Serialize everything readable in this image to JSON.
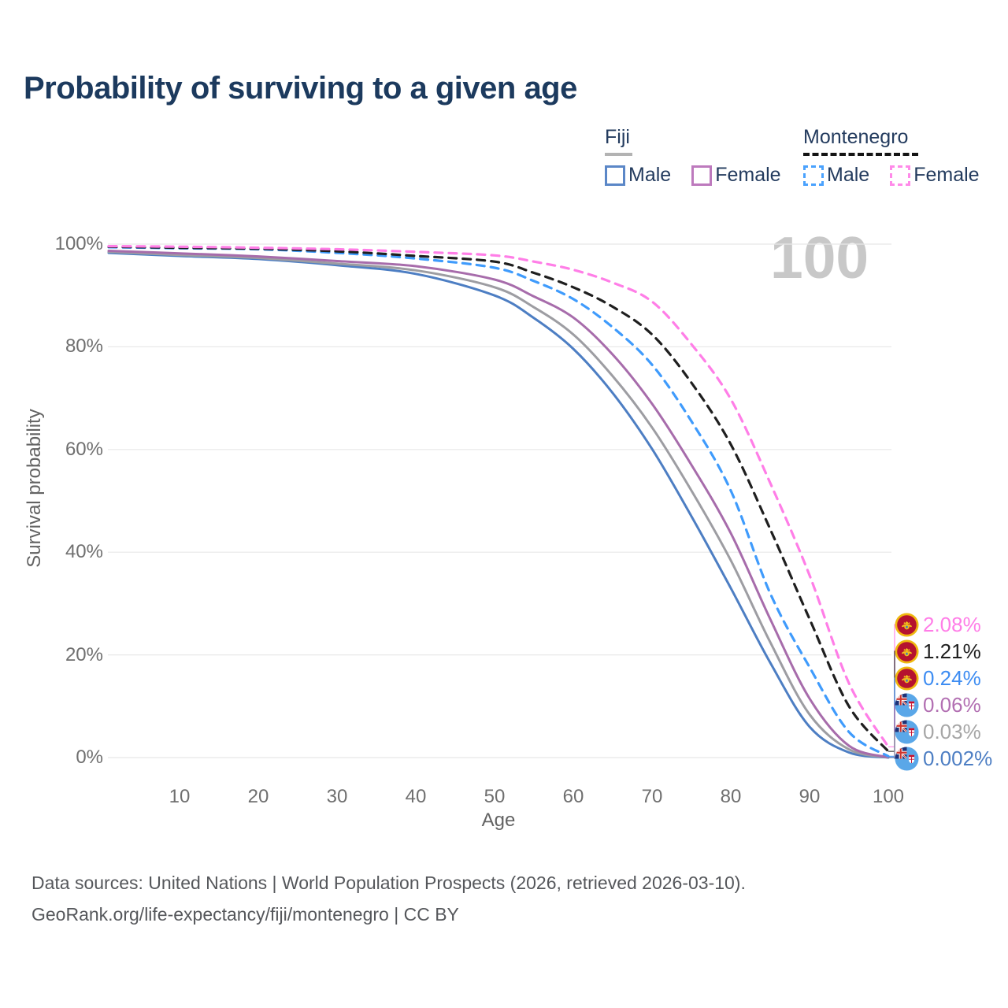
{
  "title": "Probability of surviving to a given age",
  "watermark": "100",
  "legend": {
    "groups": [
      {
        "label": "Fiji",
        "style": "solid",
        "underline_color": "#b3b3b3",
        "items": [
          {
            "label": "Male",
            "color": "#5b87c7"
          },
          {
            "label": "Female",
            "color": "#bd7abd"
          }
        ]
      },
      {
        "label": "Montenegro",
        "style": "dashed",
        "underline_color": "#141414",
        "items": [
          {
            "label": "Male",
            "color": "#4aa2fe"
          },
          {
            "label": "Female",
            "color": "#ff8ae9"
          }
        ]
      }
    ]
  },
  "chart_data": {
    "type": "line",
    "title": "Probability of surviving to a given age",
    "xlabel": "Age",
    "ylabel": "Survival probability",
    "xlim": [
      0,
      100
    ],
    "ylim": [
      0,
      100
    ],
    "grid": "horizontal",
    "x_ticks": [
      10,
      20,
      30,
      40,
      50,
      60,
      70,
      80,
      90,
      100
    ],
    "y_ticks": [
      0,
      20,
      40,
      60,
      80,
      100
    ],
    "y_tick_labels": [
      "0%",
      "20%",
      "40%",
      "60%",
      "80%",
      "100%"
    ],
    "x": [
      1,
      10,
      20,
      30,
      40,
      50,
      55,
      60,
      65,
      70,
      75,
      80,
      85,
      90,
      95,
      100
    ],
    "series": [
      {
        "id": "fiji-male",
        "name": "Fiji Male",
        "country": "fiji",
        "sex": "male",
        "line": "solid",
        "color": "#4d7ec3",
        "label_color": "#4d7ec3",
        "end_label": "0.002%",
        "values": [
          98.3,
          97.7,
          97.1,
          95.9,
          94.2,
          90.0,
          85.6,
          79.6,
          71.0,
          60.1,
          47.0,
          33.0,
          18.5,
          6.0,
          1.0,
          0.002
        ]
      },
      {
        "id": "fiji-both",
        "name": "Fiji Both sexes",
        "country": "fiji",
        "sex": "both",
        "line": "solid",
        "color": "#9d9da2",
        "label_color": "#a6a6a6",
        "end_label": "0.03%",
        "values": [
          98.5,
          97.9,
          97.3,
          96.2,
          94.9,
          91.6,
          87.7,
          82.4,
          74.3,
          64.3,
          52.0,
          38.4,
          22.5,
          8.4,
          1.6,
          0.03
        ]
      },
      {
        "id": "fiji-female",
        "name": "Fiji Female",
        "country": "fiji",
        "sex": "female",
        "line": "solid",
        "color": "#a76cab",
        "label_color": "#b26fb2",
        "end_label": "0.06%",
        "values": [
          98.7,
          98.2,
          97.6,
          96.7,
          95.7,
          93.1,
          89.8,
          85.7,
          78.5,
          68.9,
          57.0,
          43.7,
          27.0,
          11.5,
          2.3,
          0.06
        ]
      },
      {
        "id": "montenegro-male",
        "name": "Montenegro Male",
        "country": "montenegro",
        "sex": "male",
        "line": "dashed",
        "color": "#3f9bfc",
        "label_color": "#3e8df2",
        "end_label": "0.24%",
        "values": [
          99.4,
          99.2,
          99.0,
          98.3,
          97.2,
          95.4,
          92.8,
          89.3,
          83.8,
          76.5,
          65.5,
          52.0,
          32.0,
          17.6,
          5.0,
          0.24
        ]
      },
      {
        "id": "montenegro-both",
        "name": "Montenegro Both sexes",
        "country": "montenegro",
        "sex": "both",
        "line": "dashed",
        "color": "#1f1f1f",
        "label_color": "#1f1f1f",
        "end_label": "1.21%",
        "values": [
          99.5,
          99.3,
          99.1,
          98.6,
          97.7,
          96.6,
          94.4,
          91.6,
          87.8,
          82.4,
          73.0,
          61.0,
          44.5,
          27.0,
          10.0,
          1.21
        ]
      },
      {
        "id": "montenegro-female",
        "name": "Montenegro Female",
        "country": "montenegro",
        "sex": "female",
        "line": "dashed",
        "color": "#ff7ee7",
        "label_color": "#ff7ee7",
        "end_label": "2.08%",
        "values": [
          99.6,
          99.5,
          99.3,
          99.0,
          98.5,
          97.8,
          96.6,
          95.0,
          92.5,
          88.8,
          80.5,
          69.8,
          53.5,
          35.5,
          14.5,
          2.08
        ]
      }
    ]
  },
  "footer": {
    "line1": "Data sources: United Nations | World Population Prospects (2026, retrieved 2026-03-10).",
    "line2": "GeoRank.org/life-expectancy/fiji/montenegro | CC BY"
  }
}
